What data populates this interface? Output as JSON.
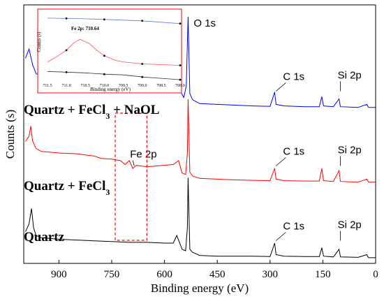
{
  "chart_data": [
    {
      "type": "line",
      "xlabel": "Binding energy (eV)",
      "ylabel": "Counts (s)",
      "xlim": [
        1000,
        0
      ],
      "x_reversed": true,
      "x_ticks": [
        900,
        750,
        600,
        450,
        300,
        150,
        0
      ],
      "grid": false,
      "legend": "none",
      "series": [
        {
          "name": "Quartz + FeCl3 + NaOL",
          "color": "#0000ff",
          "offset": 2,
          "points": [
            [
              995,
              0.66
            ],
            [
              985,
              0.78
            ],
            [
              975,
              0.58
            ],
            [
              965,
              0.46
            ],
            [
              950,
              0.43
            ],
            [
              900,
              0.42
            ],
            [
              850,
              0.41
            ],
            [
              800,
              0.39
            ],
            [
              750,
              0.37
            ],
            [
              720,
              0.35
            ],
            [
              700,
              0.33
            ],
            [
              650,
              0.31
            ],
            [
              600,
              0.28
            ],
            [
              575,
              0.26
            ],
            [
              565,
              0.33
            ],
            [
              555,
              0.23
            ],
            [
              545,
              0.15
            ],
            [
              538,
              0.3
            ],
            [
              533,
              1.2
            ],
            [
              528,
              0.2
            ],
            [
              520,
              0.12
            ],
            [
              500,
              0.07
            ],
            [
              450,
              0.06
            ],
            [
              400,
              0.05
            ],
            [
              350,
              0.04
            ],
            [
              300,
              0.035
            ],
            [
              287,
              0.22
            ],
            [
              283,
              0.06
            ],
            [
              260,
              0.04
            ],
            [
              200,
              0.03
            ],
            [
              160,
              0.03
            ],
            [
              153,
              0.16
            ],
            [
              148,
              0.04
            ],
            [
              120,
              0.03
            ],
            [
              104,
              0.13
            ],
            [
              100,
              0.03
            ],
            [
              50,
              0.02
            ],
            [
              25,
              0.06
            ],
            [
              20,
              0.02
            ],
            [
              0,
              0.02
            ]
          ]
        },
        {
          "name": "Quartz + FeCl3",
          "color": "#ff0000",
          "offset": 1,
          "points": [
            [
              995,
              0.55
            ],
            [
              985,
              0.62
            ],
            [
              980,
              0.75
            ],
            [
              975,
              0.56
            ],
            [
              965,
              0.46
            ],
            [
              950,
              0.42
            ],
            [
              900,
              0.4
            ],
            [
              850,
              0.39
            ],
            [
              800,
              0.36
            ],
            [
              780,
              0.33
            ],
            [
              750,
              0.32
            ],
            [
              725,
              0.3
            ],
            [
              712,
              0.25
            ],
            [
              700,
              0.3
            ],
            [
              690,
              0.2
            ],
            [
              680,
              0.24
            ],
            [
              650,
              0.22
            ],
            [
              600,
              0.24
            ],
            [
              575,
              0.25
            ],
            [
              560,
              0.3
            ],
            [
              550,
              0.14
            ],
            [
              540,
              0.12
            ],
            [
              535,
              0.4
            ],
            [
              533,
              1.1
            ],
            [
              528,
              0.15
            ],
            [
              520,
              0.1
            ],
            [
              500,
              0.07
            ],
            [
              450,
              0.06
            ],
            [
              400,
              0.05
            ],
            [
              350,
              0.045
            ],
            [
              300,
              0.04
            ],
            [
              287,
              0.2
            ],
            [
              283,
              0.06
            ],
            [
              260,
              0.04
            ],
            [
              200,
              0.035
            ],
            [
              160,
              0.035
            ],
            [
              153,
              0.2
            ],
            [
              148,
              0.04
            ],
            [
              120,
              0.03
            ],
            [
              104,
              0.17
            ],
            [
              100,
              0.03
            ],
            [
              50,
              0.02
            ],
            [
              25,
              0.06
            ],
            [
              20,
              0.02
            ],
            [
              0,
              0.02
            ]
          ]
        },
        {
          "name": "Quartz",
          "color": "#000000",
          "offset": 0,
          "points": [
            [
              995,
              0.35
            ],
            [
              985,
              0.45
            ],
            [
              978,
              0.65
            ],
            [
              972,
              0.4
            ],
            [
              965,
              0.3
            ],
            [
              950,
              0.27
            ],
            [
              900,
              0.25
            ],
            [
              850,
              0.24
            ],
            [
              800,
              0.23
            ],
            [
              750,
              0.22
            ],
            [
              700,
              0.21
            ],
            [
              650,
              0.21
            ],
            [
              600,
              0.2
            ],
            [
              575,
              0.2
            ],
            [
              565,
              0.3
            ],
            [
              550,
              0.12
            ],
            [
              540,
              0.1
            ],
            [
              535,
              0.4
            ],
            [
              533,
              1.05
            ],
            [
              528,
              0.12
            ],
            [
              520,
              0.08
            ],
            [
              500,
              0.04
            ],
            [
              450,
              0.03
            ],
            [
              400,
              0.03
            ],
            [
              350,
              0.03
            ],
            [
              300,
              0.025
            ],
            [
              287,
              0.2
            ],
            [
              283,
              0.05
            ],
            [
              260,
              0.03
            ],
            [
              200,
              0.025
            ],
            [
              160,
              0.025
            ],
            [
              153,
              0.14
            ],
            [
              148,
              0.03
            ],
            [
              120,
              0.02
            ],
            [
              104,
              0.12
            ],
            [
              100,
              0.02
            ],
            [
              50,
              0.015
            ],
            [
              25,
              0.05
            ],
            [
              20,
              0.01
            ],
            [
              0,
              0.01
            ]
          ]
        }
      ],
      "annotations": [
        {
          "text": "O 1s",
          "x": 533
        },
        {
          "text": "C 1s",
          "x": 287,
          "series": "Quartz + FeCl3 + NaOL"
        },
        {
          "text": "Si 2p",
          "x": 104,
          "series": "Quartz + FeCl3 + NaOL"
        },
        {
          "text": "Fe 2p",
          "x": 690,
          "series": "Quartz + FeCl3"
        },
        {
          "text": "C 1s",
          "x": 287,
          "series": "Quartz + FeCl3"
        },
        {
          "text": "Si 2p",
          "x": 104,
          "series": "Quartz + FeCl3"
        },
        {
          "text": "C 1s",
          "x": 287,
          "series": "Quartz"
        },
        {
          "text": "Si 2p",
          "x": 104,
          "series": "Quartz"
        }
      ],
      "sample_labels": {
        "naol": "Quartz + FeCl",
        "naol_sub": "3",
        "naol_rest": " + NaOL",
        "fecl": "Quartz + FeCl",
        "fecl_sub": "3",
        "quartz": "Quartz"
      },
      "highlight_region": [
        740,
        650
      ]
    },
    {
      "type": "line",
      "title": "Fe 2p: 710.64",
      "xlabel": "Binding energy (eV)",
      "ylabel": "Counts (s)",
      "xlim": [
        711.5,
        708.0
      ],
      "x_reversed": true,
      "x_ticks": [
        "711.5",
        "711.0",
        "710.5",
        "710.0",
        "709.5",
        "709.0",
        "708.5",
        "708.0"
      ],
      "series": [
        {
          "color": "#5b7bd5",
          "points": [
            [
              711.5,
              0.94
            ],
            [
              711.0,
              0.935
            ],
            [
              710.5,
              0.93
            ],
            [
              710.0,
              0.92
            ],
            [
              709.5,
              0.91
            ],
            [
              709.0,
              0.9
            ],
            [
              708.5,
              0.88
            ],
            [
              708.0,
              0.86
            ]
          ]
        },
        {
          "color": "#ff4d4d",
          "points": [
            [
              711.5,
              0.3
            ],
            [
              711.3,
              0.36
            ],
            [
              711.0,
              0.47
            ],
            [
              710.8,
              0.58
            ],
            [
              710.64,
              0.63
            ],
            [
              710.4,
              0.57
            ],
            [
              710.2,
              0.47
            ],
            [
              710.0,
              0.39
            ],
            [
              709.7,
              0.32
            ],
            [
              709.5,
              0.3
            ],
            [
              709.0,
              0.27
            ],
            [
              708.5,
              0.26
            ],
            [
              708.0,
              0.25
            ]
          ]
        },
        {
          "color": "#333333",
          "points": [
            [
              711.5,
              0.16
            ],
            [
              711.0,
              0.15
            ],
            [
              710.5,
              0.14
            ],
            [
              710.0,
              0.12
            ],
            [
              709.5,
              0.11
            ],
            [
              709.0,
              0.08
            ],
            [
              708.5,
              0.06
            ],
            [
              708.0,
              0.04
            ]
          ]
        }
      ]
    }
  ]
}
